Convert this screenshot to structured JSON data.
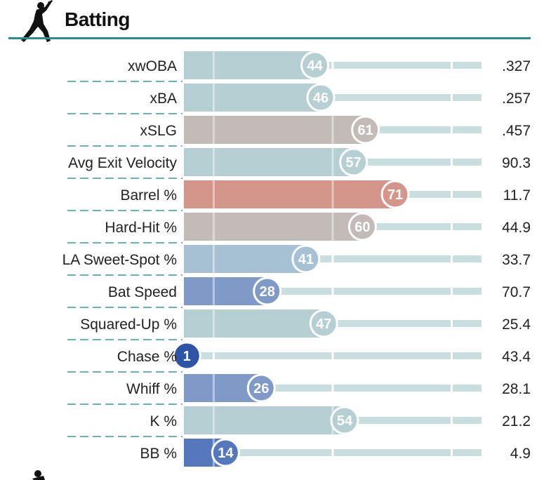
{
  "header": {
    "title": "Batting",
    "icon": "batter-silhouette-icon"
  },
  "colors": {
    "rule": "#2a8c8c",
    "divider": "#3a9a9a",
    "track": "#c9dede",
    "scale": [
      {
        "max": 5,
        "color": "#2e54a8"
      },
      {
        "max": 15,
        "color": "#5577bb"
      },
      {
        "max": 30,
        "color": "#7f9ac6"
      },
      {
        "max": 42,
        "color": "#a6c1d3"
      },
      {
        "max": 58,
        "color": "#b5cfd2"
      },
      {
        "max": 65,
        "color": "#c2bbb8"
      },
      {
        "max": 100,
        "color": "#d4958a"
      }
    ]
  },
  "chart_data": {
    "type": "bar",
    "orientation": "horizontal",
    "xlim": [
      0,
      100
    ],
    "categories": [
      "xwOBA",
      "xBA",
      "xSLG",
      "Avg Exit Velocity",
      "Barrel %",
      "Hard-Hit %",
      "LA Sweet-Spot %",
      "Bat Speed",
      "Squared-Up %",
      "Chase %",
      "Whiff %",
      "K %",
      "BB %"
    ],
    "percentiles": [
      44,
      46,
      61,
      57,
      71,
      60,
      41,
      28,
      47,
      1,
      26,
      54,
      14
    ],
    "values": [
      ".327",
      ".257",
      ".457",
      "90.3",
      "11.7",
      "44.9",
      "33.7",
      "70.7",
      "25.4",
      "43.4",
      "28.1",
      "21.2",
      "4.9"
    ]
  }
}
